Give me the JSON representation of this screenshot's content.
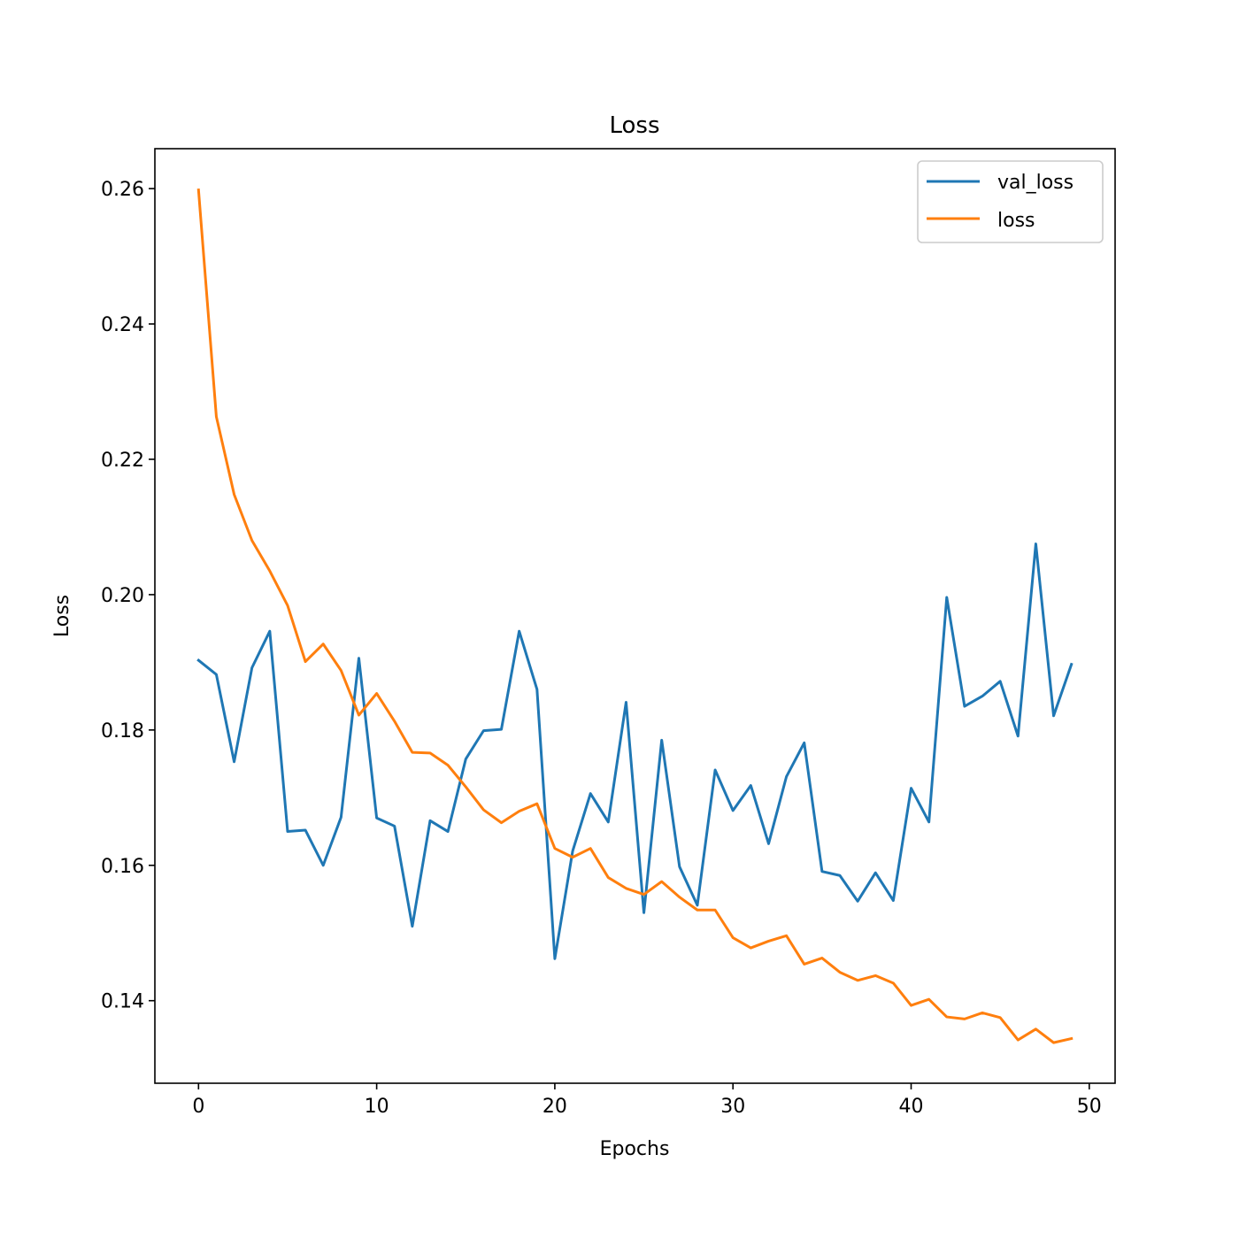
{
  "chart_data": {
    "type": "line",
    "title": "Loss",
    "xlabel": "Epochs",
    "ylabel": "Loss",
    "xlim": [
      -2.45,
      51.45
    ],
    "ylim": [
      0.1278,
      0.2659
    ],
    "xticks": [
      0,
      10,
      20,
      30,
      40,
      50
    ],
    "yticks": [
      0.14,
      0.16,
      0.18,
      0.2,
      0.22,
      0.24,
      0.26
    ],
    "xtick_labels": [
      "0",
      "10",
      "20",
      "30",
      "40",
      "50"
    ],
    "ytick_labels": [
      "0.14",
      "0.16",
      "0.18",
      "0.20",
      "0.22",
      "0.24",
      "0.26"
    ],
    "grid": false,
    "legend_position": "upper right",
    "x": [
      0,
      1,
      2,
      3,
      4,
      5,
      6,
      7,
      8,
      9,
      10,
      11,
      12,
      13,
      14,
      15,
      16,
      17,
      18,
      19,
      20,
      21,
      22,
      23,
      24,
      25,
      26,
      27,
      28,
      29,
      30,
      31,
      32,
      33,
      34,
      35,
      36,
      37,
      38,
      39,
      40,
      41,
      42,
      43,
      44,
      45,
      46,
      47,
      48,
      49
    ],
    "series": [
      {
        "name": "val_loss",
        "color": "#1f77b4",
        "values": [
          0.1903,
          0.1882,
          0.1753,
          0.1892,
          0.1946,
          0.165,
          0.1652,
          0.16,
          0.1671,
          0.1906,
          0.167,
          0.1658,
          0.151,
          0.1666,
          0.165,
          0.1757,
          0.1799,
          0.1801,
          0.1946,
          0.186,
          0.1462,
          0.1621,
          0.1706,
          0.1664,
          0.1841,
          0.153,
          0.1785,
          0.1598,
          0.1541,
          0.1741,
          0.1681,
          0.1718,
          0.1632,
          0.1731,
          0.1781,
          0.1591,
          0.1585,
          0.1547,
          0.1589,
          0.1548,
          0.1714,
          0.1664,
          0.1996,
          0.1835,
          0.185,
          0.1872,
          0.1791,
          0.2075,
          0.1821,
          0.1897
        ]
      },
      {
        "name": "loss",
        "color": "#ff7f0e",
        "values": [
          0.2598,
          0.2263,
          0.2148,
          0.208,
          0.2035,
          0.1984,
          0.1901,
          0.1927,
          0.1888,
          0.1822,
          0.1854,
          0.1813,
          0.1767,
          0.1766,
          0.1748,
          0.1716,
          0.1682,
          0.1663,
          0.168,
          0.1691,
          0.1625,
          0.1612,
          0.1625,
          0.1582,
          0.1566,
          0.1557,
          0.1576,
          0.1553,
          0.1534,
          0.1534,
          0.1493,
          0.1478,
          0.1488,
          0.1496,
          0.1454,
          0.1463,
          0.1442,
          0.143,
          0.1437,
          0.1426,
          0.1393,
          0.1402,
          0.1376,
          0.1373,
          0.1382,
          0.1375,
          0.1342,
          0.1358,
          0.1338,
          0.1344
        ]
      }
    ]
  }
}
